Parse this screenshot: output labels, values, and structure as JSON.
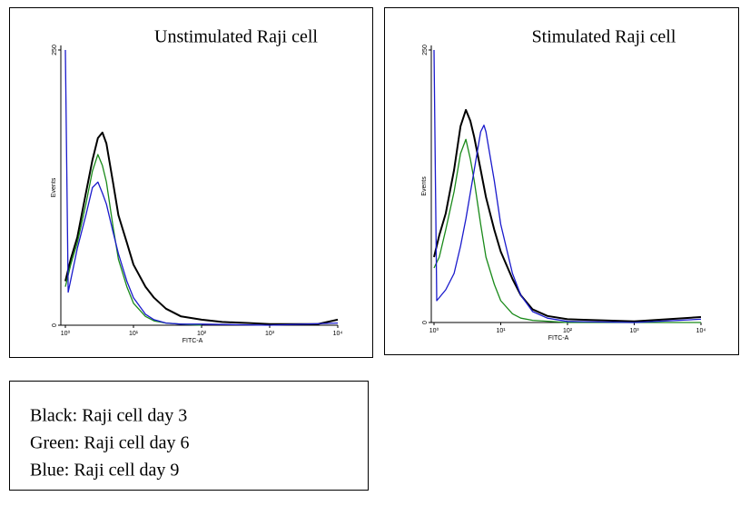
{
  "chart_data": [
    {
      "type": "line",
      "title": "Unstimulated Raji cell",
      "xlabel": "FITC-A",
      "ylabel": "Events",
      "xscale": "log",
      "xlim": [
        1,
        10000
      ],
      "ylim": [
        0,
        250
      ],
      "xticks": [
        {
          "value": 1,
          "label": "10⁰"
        },
        {
          "value": 10,
          "label": "10¹"
        },
        {
          "value": 100,
          "label": "10²"
        },
        {
          "value": 1000,
          "label": "10³"
        },
        {
          "value": 10000,
          "label": "10⁴"
        }
      ],
      "yticks": [
        0,
        250
      ],
      "series": [
        {
          "color": "#000000",
          "x": [
            1,
            1.2,
            1.5,
            2,
            2.5,
            3,
            3.5,
            4,
            5,
            6,
            8,
            10,
            15,
            20,
            30,
            50,
            100,
            200,
            500,
            1000,
            5000,
            10000
          ],
          "values": [
            40,
            60,
            80,
            120,
            150,
            170,
            175,
            165,
            130,
            100,
            75,
            55,
            35,
            25,
            15,
            8,
            5,
            3,
            2,
            1,
            1,
            5
          ]
        },
        {
          "color": "#1a8a1a",
          "x": [
            1,
            1.2,
            1.5,
            2,
            2.5,
            3,
            3.5,
            4,
            5,
            6,
            8,
            10,
            15,
            20,
            30,
            50,
            100
          ],
          "values": [
            35,
            55,
            75,
            110,
            140,
            155,
            145,
            130,
            90,
            60,
            35,
            20,
            8,
            4,
            2,
            1,
            0
          ]
        },
        {
          "color": "#1a1acc",
          "x": [
            1,
            1.1,
            1.5,
            2,
            2.5,
            3,
            3.5,
            4,
            5,
            6,
            8,
            10,
            15,
            20,
            30,
            50,
            100,
            1000,
            10000
          ],
          "values": [
            250,
            30,
            70,
            100,
            125,
            130,
            120,
            110,
            85,
            65,
            40,
            25,
            10,
            5,
            2,
            1,
            1,
            0,
            2
          ]
        }
      ]
    },
    {
      "type": "line",
      "title": "Stimulated Raji cell",
      "xlabel": "FITC-A",
      "ylabel": "Events",
      "xscale": "log",
      "xlim": [
        1,
        10000
      ],
      "ylim": [
        0,
        250
      ],
      "xticks": [
        {
          "value": 1,
          "label": "10⁰"
        },
        {
          "value": 10,
          "label": "10¹"
        },
        {
          "value": 100,
          "label": "10²"
        },
        {
          "value": 1000,
          "label": "10³"
        },
        {
          "value": 10000,
          "label": "10⁴"
        }
      ],
      "yticks": [
        0,
        250
      ],
      "series": [
        {
          "color": "#000000",
          "x": [
            1,
            1.2,
            1.5,
            2,
            2.5,
            3,
            3.5,
            4,
            5,
            6,
            8,
            10,
            15,
            20,
            30,
            50,
            100,
            1000,
            10000
          ],
          "values": [
            60,
            80,
            100,
            140,
            180,
            195,
            185,
            170,
            140,
            115,
            85,
            65,
            40,
            25,
            12,
            6,
            3,
            1,
            5
          ]
        },
        {
          "color": "#1a8a1a",
          "x": [
            1,
            1.2,
            1.5,
            2,
            2.5,
            3,
            3.5,
            4,
            5,
            6,
            8,
            10,
            15,
            20,
            30,
            100,
            10000
          ],
          "values": [
            50,
            60,
            85,
            120,
            155,
            168,
            150,
            130,
            90,
            60,
            35,
            20,
            8,
            4,
            2,
            0,
            0
          ]
        },
        {
          "color": "#1a1acc",
          "x": [
            1,
            1.1,
            1.5,
            2,
            2.5,
            3,
            4,
            5,
            5.6,
            6,
            8,
            10,
            15,
            20,
            30,
            50,
            100,
            1000,
            10000
          ],
          "values": [
            250,
            20,
            30,
            45,
            70,
            95,
            140,
            175,
            181,
            175,
            130,
            90,
            45,
            25,
            10,
            4,
            1,
            0,
            3
          ]
        }
      ]
    }
  ],
  "legend": [
    "Black: Raji cell day 3",
    "Green: Raji cell day 6",
    "Blue: Raji cell day 9"
  ]
}
